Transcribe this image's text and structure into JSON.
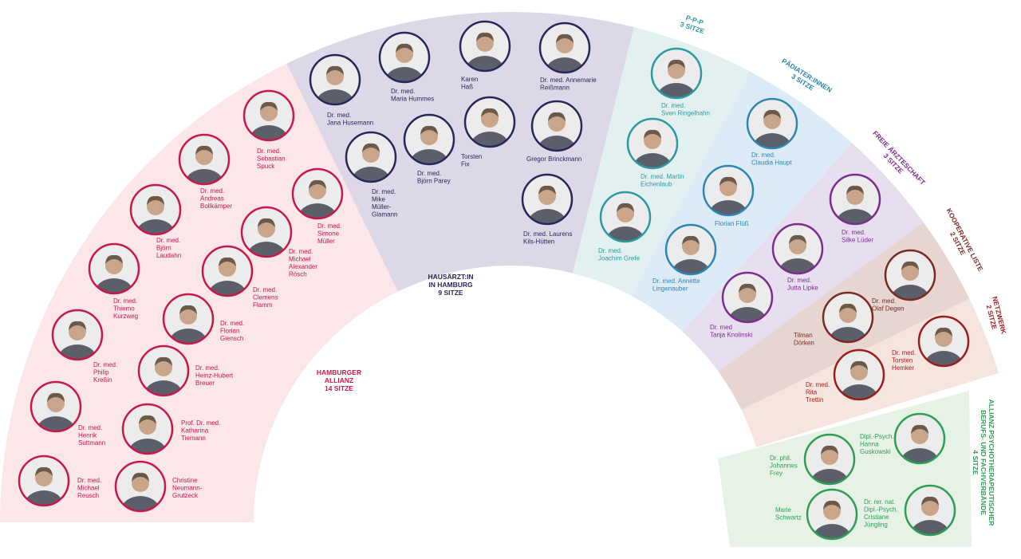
{
  "groups": [
    {
      "label": [
        "HAMBURGER",
        "ALLIANZ",
        "14 SITZE"
      ],
      "color": "#c8174b",
      "background": "#fbe6e8",
      "members": [
        {
          "name": [
            "Dr. med.",
            "Sebastian",
            "Spuck"
          ]
        },
        {
          "name": [
            "Dr. med.",
            "Andreas",
            "Bollkämper"
          ]
        },
        {
          "name": [
            "Dr. med.",
            "Simone",
            "Müller"
          ]
        },
        {
          "name": [
            "Dr. med.",
            "Björn",
            "Laudahn"
          ]
        },
        {
          "name": [
            "Dr. med.",
            "Michael",
            "Alexander",
            "Rösch"
          ]
        },
        {
          "name": [
            "Dr. med.",
            "Clemens",
            "Flamm"
          ]
        },
        {
          "name": [
            "Dr. med.",
            "Thiemo",
            "Kurzweg"
          ]
        },
        {
          "name": [
            "Dr. med.",
            "Florian",
            "Giensch"
          ]
        },
        {
          "name": [
            "Dr. med.",
            "Philip",
            "Kreßin"
          ]
        },
        {
          "name": [
            "Dr. med.",
            "Heinz-Hubert",
            "Breuer"
          ]
        },
        {
          "name": [
            "Dr. med.",
            "Henrik",
            "Suttmann"
          ]
        },
        {
          "name": [
            "Prof. Dr. med.",
            "Katharina",
            "Tiemann"
          ]
        },
        {
          "name": [
            "Dr. med.",
            "Michael",
            "Reusch"
          ]
        },
        {
          "name": [
            "Christine",
            "Neumann-",
            "Grutzeck"
          ]
        }
      ]
    },
    {
      "label": [
        "HAUSÄRZT:IN",
        "IN HAMBURG",
        "9 SITZE"
      ],
      "color": "#27285a",
      "background": "#dcd8e8",
      "members": [
        {
          "name": [
            "Dr. med.",
            "Jana Husemann"
          ]
        },
        {
          "name": [
            "Dr. med.",
            "Maria Hummes"
          ]
        },
        {
          "name": [
            "Karen",
            "Haß"
          ]
        },
        {
          "name": [
            "Dr. med. Annemarie",
            "Reißmann"
          ]
        },
        {
          "name": [
            "Dr. med.",
            "Mike",
            "Müller-",
            "Glamann"
          ]
        },
        {
          "name": [
            "Dr. med.",
            "Björn Parey"
          ]
        },
        {
          "name": [
            "Torsten",
            "Fix"
          ]
        },
        {
          "name": [
            "Gregor Brinckmann"
          ]
        },
        {
          "name": [
            "Dr. med. Laurens",
            "Kils-Hütten"
          ]
        }
      ]
    },
    {
      "label": [
        "P-P-P",
        "3 SITZE"
      ],
      "color": "#2a9aa3",
      "background": "#e2f1ef",
      "members": [
        {
          "name": [
            "Dr. med.",
            "Sven Ringelhahn"
          ]
        },
        {
          "name": [
            "Dr. med. Martin",
            "Eichenlaub"
          ]
        },
        {
          "name": [
            "Dr. med.",
            "Joachim Grefe"
          ]
        }
      ]
    },
    {
      "label": [
        "PÄDIATER:INNEN",
        "3 SITZE"
      ],
      "color": "#2d86b3",
      "background": "#ddebf6",
      "members": [
        {
          "name": [
            "Dr. med.",
            "Claudia Haupt"
          ]
        },
        {
          "name": [
            "Florian Flüß"
          ]
        },
        {
          "name": [
            "Dr. med. Annette",
            "Lingenauber"
          ]
        }
      ]
    },
    {
      "label": [
        "FREIE ÄRZTESCHAFT",
        "3 SITZE"
      ],
      "color": "#7b2d8e",
      "background": "#e7dff0",
      "members": [
        {
          "name": [
            "Dr. med.",
            "Silke Lüder"
          ]
        },
        {
          "name": [
            "Dr. med.",
            "Jutta Lipke"
          ]
        },
        {
          "name": [
            "Dr. med",
            "Tanja Knolinski"
          ]
        }
      ]
    },
    {
      "label": [
        "KOOPERATIVE LISTE",
        "2 SITZE"
      ],
      "color": "#7a2a22",
      "background": "#e6d5d1",
      "members": [
        {
          "name": [
            "Dr. med.",
            "Olaf Degen"
          ]
        },
        {
          "name": [
            "Tilman",
            "Dörken"
          ]
        }
      ]
    },
    {
      "label": [
        "NETZWERK",
        "2 SITZE"
      ],
      "color": "#9e1b1b",
      "background": "#f5e5de",
      "members": [
        {
          "name": [
            "Dr. med.",
            "Torsten",
            "Hemker"
          ]
        },
        {
          "name": [
            "Dr. med.",
            "Rita",
            "Trettin"
          ]
        }
      ]
    },
    {
      "label": [
        "ALLIANZ PSYCHOTHERAPEUTISCHER",
        "BERUFS- UND FACHVERBÄNDE",
        "4 SITZE"
      ],
      "color": "#2e9e55",
      "background": "#e5f2e5",
      "members": [
        {
          "name": [
            "Dr. phil.",
            "Johannes",
            "Frey"
          ]
        },
        {
          "name": [
            "Dipl.-Psych.",
            "Hanna",
            "Guskowski"
          ]
        },
        {
          "name": [
            "Marie",
            "Schwartz"
          ]
        },
        {
          "name": [
            "Dr. rer. nat.",
            "Dipl.-Psych.",
            "Cristiane",
            "Jüngling"
          ]
        }
      ]
    }
  ]
}
